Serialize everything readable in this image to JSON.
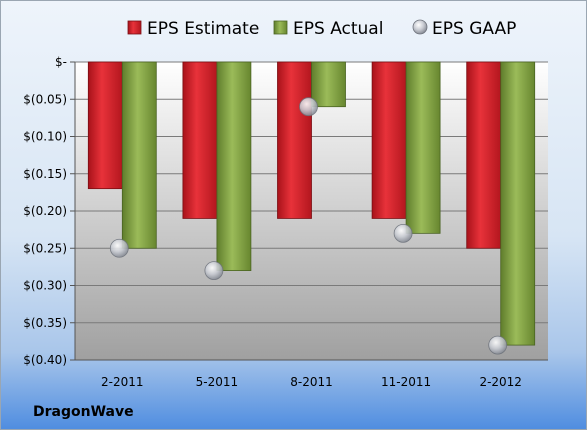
{
  "chart_data": {
    "type": "bar",
    "title": "",
    "xlabel": "",
    "ylabel": "",
    "categories": [
      "2-2011",
      "5-2011",
      "8-2011",
      "11-2011",
      "2-2012"
    ],
    "series": [
      {
        "name": "EPS Estimate",
        "type": "bar",
        "values": [
          -0.17,
          -0.21,
          -0.21,
          -0.21,
          -0.25
        ],
        "color": "#d9202a"
      },
      {
        "name": "EPS Actual",
        "type": "bar",
        "values": [
          -0.25,
          -0.28,
          -0.06,
          -0.23,
          -0.38
        ],
        "color": "#7d9c3f"
      },
      {
        "name": "EPS GAAP",
        "type": "scatter",
        "values": [
          -0.25,
          -0.28,
          -0.06,
          -0.23,
          -0.38
        ],
        "color": "#b8bcc4"
      }
    ],
    "ylim": [
      -0.4,
      0
    ],
    "yticks": [
      0,
      -0.05,
      -0.1,
      -0.15,
      -0.2,
      -0.25,
      -0.3,
      -0.35,
      -0.4
    ],
    "ytick_labels": [
      "$-",
      "$(0.05)",
      "$(0.10)",
      "$(0.15)",
      "$(0.20)",
      "$(0.25)",
      "$(0.30)",
      "$(0.35)",
      "$(0.40)"
    ],
    "grid": true,
    "legend": "top"
  },
  "footer": {
    "company": "DragonWave"
  }
}
